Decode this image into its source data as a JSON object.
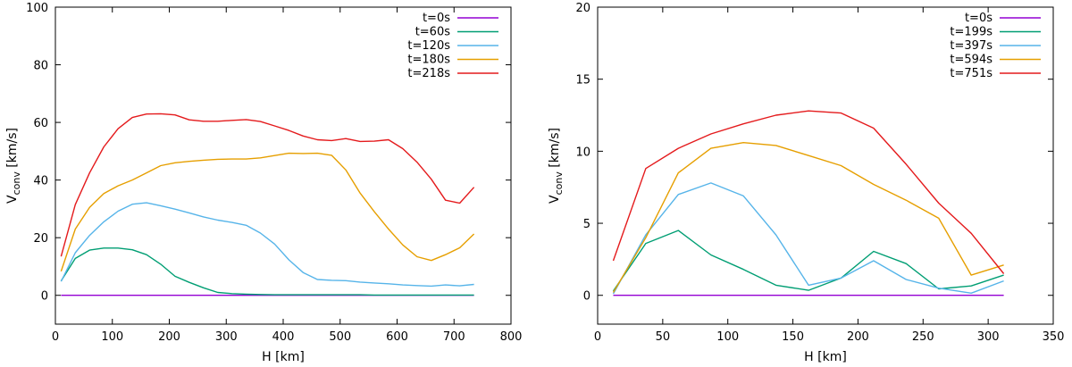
{
  "chart_data": [
    {
      "type": "line",
      "xlabel": "H [km]",
      "ylabel_main": "V",
      "ylabel_sub": "conv",
      "ylabel_unit": " [km/s]",
      "xlim": [
        0,
        800
      ],
      "ylim": [
        -10,
        100
      ],
      "xticks": [
        0,
        100,
        200,
        300,
        400,
        500,
        600,
        700,
        800
      ],
      "yticks": [
        0,
        20,
        40,
        60,
        80,
        100
      ],
      "grid": false,
      "legend": "top-right",
      "series": [
        {
          "name": "t=0s",
          "color": "#9400d3",
          "x": [
            10,
            735
          ],
          "y": [
            0,
            0
          ]
        },
        {
          "name": "t=60s",
          "color": "#009e73",
          "x": [
            10,
            35,
            60,
            85,
            110,
            135,
            160,
            185,
            210,
            235,
            260,
            285,
            310,
            335,
            360,
            385,
            410,
            435,
            460,
            485,
            510,
            535,
            560,
            585,
            610,
            635,
            660,
            685,
            710,
            735
          ],
          "y": [
            5,
            12.8,
            15.7,
            16.4,
            16.4,
            15.8,
            14.1,
            10.8,
            6.6,
            4.5,
            2.6,
            1.0,
            0.6,
            0.4,
            0.3,
            0.2,
            0.2,
            0.2,
            0.2,
            0.2,
            0.2,
            0.2,
            0.1,
            0.1,
            0.1,
            0.1,
            0.1,
            0.1,
            0.1,
            0.1
          ]
        },
        {
          "name": "t=120s",
          "color": "#56b4e9",
          "x": [
            10,
            35,
            60,
            85,
            110,
            135,
            160,
            185,
            210,
            235,
            260,
            285,
            310,
            335,
            360,
            385,
            410,
            435,
            460,
            485,
            510,
            535,
            560,
            585,
            610,
            635,
            660,
            685,
            710,
            735
          ],
          "y": [
            4.8,
            14.8,
            20.8,
            25.5,
            29.2,
            31.6,
            32.1,
            31.1,
            29.9,
            28.6,
            27.2,
            26.1,
            25.3,
            24.3,
            21.6,
            17.8,
            12.3,
            7.9,
            5.5,
            5.2,
            5.1,
            4.6,
            4.3,
            4.0,
            3.6,
            3.4,
            3.2,
            3.6,
            3.3,
            3.8
          ]
        },
        {
          "name": "t=180s",
          "color": "#e69f00",
          "x": [
            10,
            35,
            60,
            85,
            110,
            135,
            160,
            185,
            210,
            235,
            260,
            285,
            310,
            335,
            360,
            385,
            410,
            435,
            460,
            485,
            510,
            535,
            560,
            585,
            610,
            635,
            660,
            685,
            710,
            735
          ],
          "y": [
            8.3,
            23,
            30.5,
            35.3,
            38.0,
            40.0,
            42.5,
            45.0,
            46.0,
            46.5,
            46.9,
            47.2,
            47.3,
            47.3,
            47.7,
            48.5,
            49.3,
            49.2,
            49.3,
            48.6,
            43.5,
            35.5,
            29.0,
            23.0,
            17.5,
            13.4,
            12.1,
            14.1,
            16.5,
            21.3
          ]
        },
        {
          "name": "t=218s",
          "color": "#e41a1c",
          "x": [
            10,
            35,
            60,
            85,
            110,
            135,
            160,
            185,
            210,
            235,
            260,
            285,
            310,
            335,
            360,
            385,
            410,
            435,
            460,
            485,
            510,
            535,
            560,
            585,
            610,
            635,
            660,
            685,
            710,
            735
          ],
          "y": [
            13.5,
            31.5,
            42.5,
            51.5,
            57.8,
            61.7,
            62.9,
            63.0,
            62.6,
            60.9,
            60.4,
            60.4,
            60.7,
            61.0,
            60.3,
            58.8,
            57.2,
            55.3,
            54.0,
            53.7,
            54.4,
            53.4,
            53.5,
            54.0,
            50.9,
            46.2,
            40.3,
            33.0,
            32.0,
            37.5
          ]
        }
      ]
    },
    {
      "type": "line",
      "xlabel": "H [km]",
      "ylabel_main": "V",
      "ylabel_sub": "conv",
      "ylabel_unit": " [km/s]",
      "xlim": [
        0,
        350
      ],
      "ylim": [
        -2,
        20
      ],
      "xticks": [
        0,
        50,
        100,
        150,
        200,
        250,
        300,
        350
      ],
      "yticks": [
        0,
        5,
        10,
        15,
        20
      ],
      "grid": false,
      "legend": "top-right",
      "series": [
        {
          "name": "t=0s",
          "color": "#9400d3",
          "x": [
            12,
            312
          ],
          "y": [
            0,
            0
          ]
        },
        {
          "name": "t=199s",
          "color": "#009e73",
          "x": [
            12,
            37,
            62,
            87,
            112,
            137,
            162,
            187,
            212,
            237,
            262,
            287,
            312
          ],
          "y": [
            0.3,
            3.6,
            4.5,
            2.8,
            1.8,
            0.7,
            0.35,
            1.2,
            3.05,
            2.2,
            0.45,
            0.65,
            1.4
          ]
        },
        {
          "name": "t=397s",
          "color": "#56b4e9",
          "x": [
            12,
            37,
            62,
            87,
            112,
            137,
            162,
            187,
            212,
            237,
            262,
            287,
            312
          ],
          "y": [
            0.1,
            4.2,
            7.0,
            7.8,
            6.9,
            4.2,
            0.7,
            1.2,
            2.4,
            1.1,
            0.5,
            0.15,
            1.0
          ]
        },
        {
          "name": "t=594s",
          "color": "#e69f00",
          "x": [
            12,
            37,
            62,
            87,
            112,
            137,
            162,
            187,
            212,
            237,
            262,
            287,
            312
          ],
          "y": [
            0.2,
            4.0,
            8.5,
            10.2,
            10.6,
            10.4,
            9.7,
            9.0,
            7.7,
            6.6,
            5.35,
            1.4,
            2.1
          ]
        },
        {
          "name": "t=751s",
          "color": "#e41a1c",
          "x": [
            12,
            37,
            62,
            87,
            112,
            137,
            162,
            187,
            212,
            237,
            262,
            287,
            312
          ],
          "y": [
            2.4,
            8.8,
            10.2,
            11.2,
            11.9,
            12.5,
            12.8,
            12.65,
            11.6,
            9.1,
            6.4,
            4.3,
            1.5
          ]
        }
      ]
    }
  ]
}
